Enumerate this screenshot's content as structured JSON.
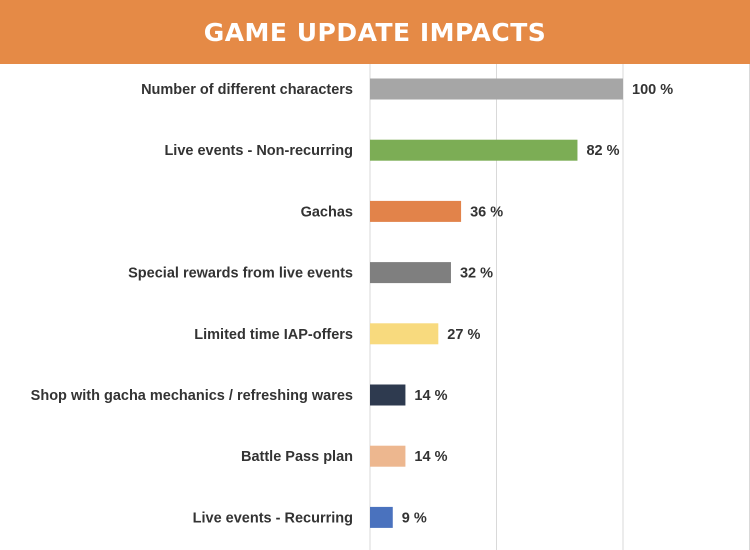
{
  "header": {
    "title": "GAME UPDATE IMPACTS"
  },
  "colors": {
    "banner": "#E58A46",
    "grid": "#D9D9D9"
  },
  "chart_data": {
    "type": "bar",
    "orientation": "horizontal",
    "title": "GAME UPDATE IMPACTS",
    "xlim": [
      0,
      150
    ],
    "grid": true,
    "categories": [
      "Number of different characters",
      "Live events - Non-recurring",
      "Gachas",
      "Special rewards from live events",
      "Limited time IAP-offers",
      "Shop with gacha mechanics / refreshing wares",
      "Battle Pass plan",
      "Live events - Recurring"
    ],
    "values": [
      100,
      82,
      36,
      32,
      27,
      14,
      14,
      9
    ],
    "value_labels": [
      "100 %",
      "82 %",
      "36 %",
      "32 %",
      "27 %",
      "14 %",
      "14 %",
      "9 %"
    ],
    "bar_colors": [
      "#A6A6A6",
      "#7CAD55",
      "#E2834A",
      "#7F7F7F",
      "#F8DA7E",
      "#2E3A4F",
      "#EDB78F",
      "#4A72BE"
    ]
  }
}
